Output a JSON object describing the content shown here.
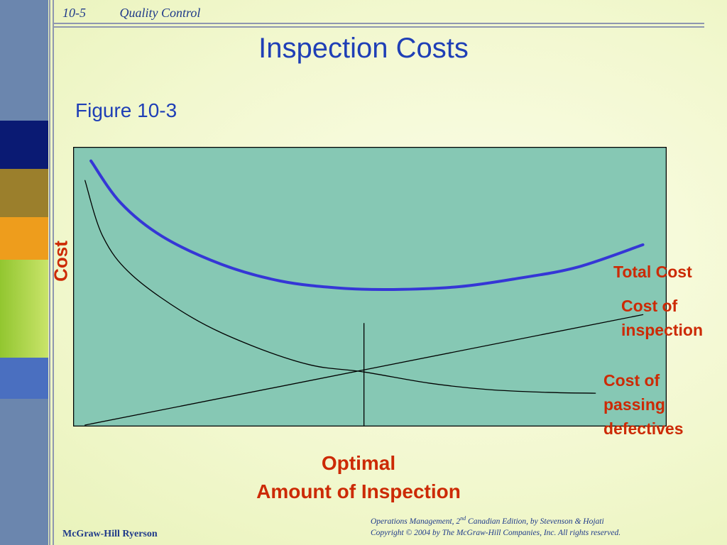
{
  "header": {
    "number": "10-5",
    "topic": "Quality Control"
  },
  "title": "Inspection Costs",
  "figure_label": "Figure 10-3",
  "footer": {
    "publisher": "McGraw-Hill Ryerson",
    "line1_a": "Operations Management, 2",
    "line1_sup": "nd",
    "line1_b": " Canadian Edition, by Stevenson & Hojati",
    "line2": "Copyright © 2004 by The McGraw-Hill Companies, Inc.  All rights reserved."
  },
  "colors": {
    "plot_background": "#86c8b4",
    "total_cost_line": "#3536d6",
    "component_lines": "#000000",
    "label_text": "#cc2a05",
    "title_text": "#1f3fb6"
  },
  "chart_data": {
    "type": "line",
    "title": "Inspection Costs",
    "ylabel": "Cost",
    "xlabel_lines": [
      "Optimal",
      "Amount of Inspection"
    ],
    "axis_ticks": "none",
    "grid": false,
    "xlim": [
      0,
      10
    ],
    "ylim": [
      0,
      10
    ],
    "series": [
      {
        "name": "Total Cost",
        "color": "#3536d6",
        "x": [
          0.3,
          0.8,
          1.5,
          2.5,
          3.5,
          4.5,
          5.4,
          6.5,
          7.5,
          8.5,
          9.6
        ],
        "y": [
          9.5,
          8.0,
          6.8,
          5.8,
          5.2,
          4.95,
          4.9,
          5.0,
          5.3,
          5.7,
          6.5
        ]
      },
      {
        "name": "Cost of inspection",
        "color": "#000000",
        "x": [
          0.2,
          9.6
        ],
        "y": [
          0.05,
          4.0
        ]
      },
      {
        "name": "Cost of passing defectives",
        "color": "#000000",
        "x": [
          0.2,
          0.5,
          1.0,
          2.0,
          3.0,
          4.0,
          4.9,
          6.0,
          7.0,
          8.0,
          8.8
        ],
        "y": [
          8.8,
          6.8,
          5.4,
          3.9,
          2.9,
          2.2,
          1.95,
          1.55,
          1.32,
          1.22,
          1.19
        ]
      }
    ],
    "optimal_x": 4.9
  }
}
